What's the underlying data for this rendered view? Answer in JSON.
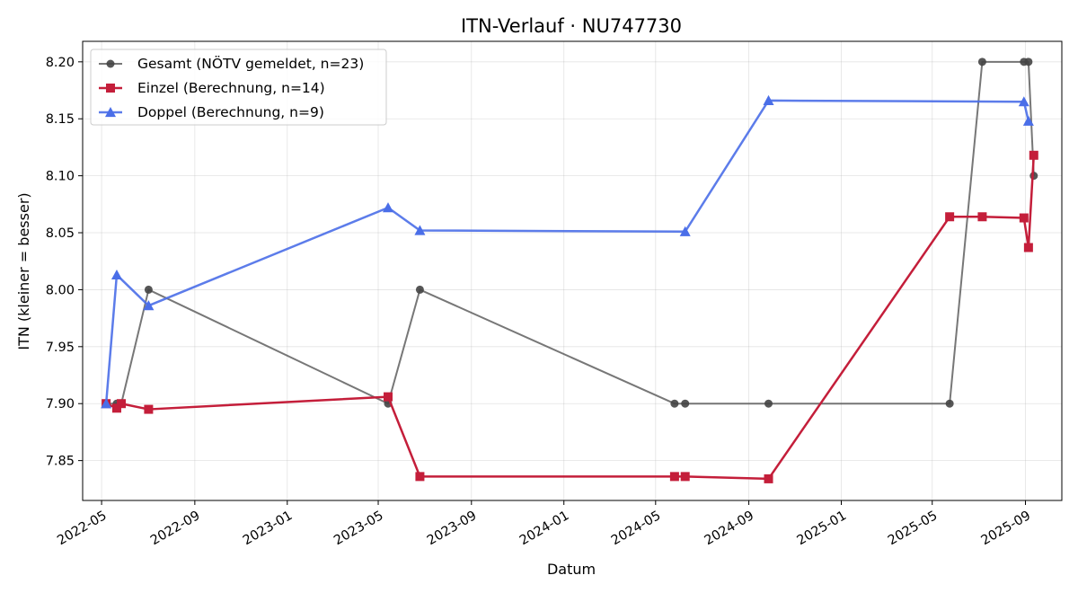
{
  "chart_data": {
    "type": "line",
    "title": "ITN-Verlauf · NU747730",
    "xlabel": "Datum",
    "ylabel": "ITN  (kleiner = besser)",
    "x_axis_type": "date",
    "xlim": [
      "2022-04-06",
      "2025-10-19"
    ],
    "ylim": [
      7.815,
      8.218
    ],
    "grid": true,
    "legend_position": "top-left",
    "x_ticks": [
      "2022-05-01",
      "2022-09-01",
      "2023-01-01",
      "2023-05-01",
      "2023-09-01",
      "2024-01-01",
      "2024-05-01",
      "2024-09-01",
      "2025-01-01",
      "2025-05-01",
      "2025-09-01"
    ],
    "x_tick_labels": [
      "2022-05",
      "2022-09",
      "2023-01",
      "2023-05",
      "2023-09",
      "2024-01",
      "2024-05",
      "2024-09",
      "2025-01",
      "2025-05",
      "2025-09"
    ],
    "y_ticks": [
      7.85,
      7.9,
      7.95,
      8.0,
      8.05,
      8.1,
      8.15,
      8.2
    ],
    "y_tick_labels": [
      "7.85",
      "7.90",
      "7.95",
      "8.00",
      "8.05",
      "8.10",
      "8.15",
      "8.20"
    ],
    "series": [
      {
        "name": "Gesamt (NÖTV gemeldet, n=23)",
        "color": "#555555",
        "marker": "circle",
        "points": [
          {
            "x": "2022-05-07",
            "y": 7.9
          },
          {
            "x": "2022-05-21",
            "y": 7.9
          },
          {
            "x": "2022-05-27",
            "y": 7.9
          },
          {
            "x": "2022-07-02",
            "y": 8.0
          },
          {
            "x": "2023-05-14",
            "y": 7.9
          },
          {
            "x": "2023-06-25",
            "y": 8.0
          },
          {
            "x": "2024-05-26",
            "y": 7.9
          },
          {
            "x": "2024-06-09",
            "y": 7.9
          },
          {
            "x": "2024-09-27",
            "y": 7.9
          },
          {
            "x": "2025-05-24",
            "y": 7.9
          },
          {
            "x": "2025-07-06",
            "y": 8.2
          },
          {
            "x": "2025-08-30",
            "y": 8.2
          },
          {
            "x": "2025-09-05",
            "y": 8.2
          },
          {
            "x": "2025-09-12",
            "y": 8.1
          }
        ]
      },
      {
        "name": "Einzel (Berechnung, n=14)",
        "color": "#c41e3a",
        "marker": "square",
        "points": [
          {
            "x": "2022-05-07",
            "y": 7.9
          },
          {
            "x": "2022-05-21",
            "y": 7.896
          },
          {
            "x": "2022-05-27",
            "y": 7.9
          },
          {
            "x": "2022-07-02",
            "y": 7.895
          },
          {
            "x": "2023-05-14",
            "y": 7.906
          },
          {
            "x": "2023-06-25",
            "y": 7.836
          },
          {
            "x": "2024-05-26",
            "y": 7.836
          },
          {
            "x": "2024-06-09",
            "y": 7.836
          },
          {
            "x": "2024-09-27",
            "y": 7.834
          },
          {
            "x": "2025-05-24",
            "y": 8.064
          },
          {
            "x": "2025-07-06",
            "y": 8.064
          },
          {
            "x": "2025-08-30",
            "y": 8.063
          },
          {
            "x": "2025-09-05",
            "y": 8.037
          },
          {
            "x": "2025-09-12",
            "y": 8.118
          }
        ]
      },
      {
        "name": "Doppel (Berechnung, n=9)",
        "color": "#4a6ee8",
        "marker": "triangle",
        "points": [
          {
            "x": "2022-05-07",
            "y": 7.9
          },
          {
            "x": "2022-05-21",
            "y": 8.013
          },
          {
            "x": "2022-07-02",
            "y": 7.986
          },
          {
            "x": "2023-05-14",
            "y": 8.072
          },
          {
            "x": "2023-06-25",
            "y": 8.052
          },
          {
            "x": "2024-06-09",
            "y": 8.051
          },
          {
            "x": "2024-09-27",
            "y": 8.166
          },
          {
            "x": "2025-08-30",
            "y": 8.165
          },
          {
            "x": "2025-09-05",
            "y": 8.148
          }
        ]
      }
    ]
  }
}
